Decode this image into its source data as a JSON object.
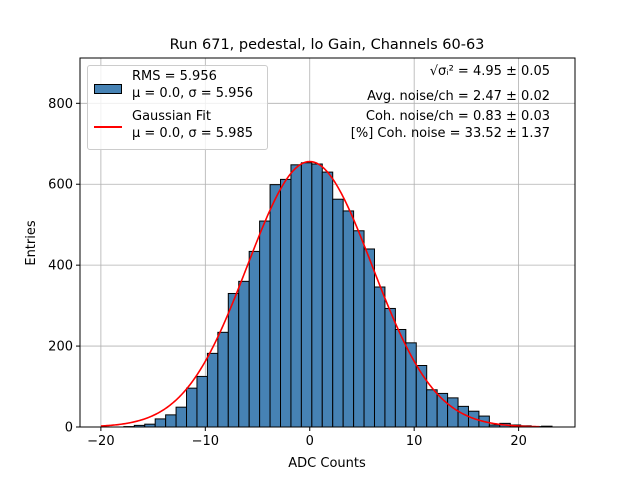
{
  "chart_data": {
    "type": "bar",
    "title": "Run 671, pedestal, lo Gain, Channels 60-63",
    "xlabel": "ADC Counts",
    "ylabel": "Entries",
    "xlim": [
      -22,
      25.4
    ],
    "ylim": [
      0,
      912
    ],
    "xticks": [
      -20,
      -10,
      0,
      10,
      20
    ],
    "yticks": [
      0,
      200,
      400,
      600,
      800
    ],
    "grid": true,
    "bin_width": 1,
    "bin_left_edges": [
      -17.8,
      -16.8,
      -15.8,
      -14.8,
      -13.8,
      -12.8,
      -11.8,
      -10.8,
      -9.8,
      -8.8,
      -7.8,
      -6.8,
      -5.8,
      -4.8,
      -3.8,
      -2.8,
      -1.8,
      -0.8,
      0.2,
      1.2,
      2.2,
      3.2,
      4.2,
      5.2,
      6.2,
      7.2,
      8.2,
      9.2,
      10.2,
      11.2,
      12.2,
      13.2,
      14.2,
      15.2,
      16.2,
      17.2,
      18.2,
      19.2,
      20.2,
      21.2,
      22.2
    ],
    "values": [
      1,
      4,
      7,
      20,
      30,
      49,
      96,
      125,
      182,
      234,
      330,
      360,
      434,
      509,
      599,
      612,
      648,
      653,
      650,
      630,
      563,
      534,
      485,
      440,
      346,
      293,
      241,
      208,
      152,
      92,
      83,
      72,
      51,
      39,
      27,
      5,
      9,
      5,
      3,
      1,
      2
    ],
    "hist_color": "#4682b4",
    "fit": {
      "type": "gaussian",
      "mu": 0.0,
      "sigma": 5.985,
      "peak": 656,
      "x_range": [
        -20,
        22
      ],
      "color": "#ff0000"
    },
    "legend": {
      "placement": "top-left",
      "entries": [
        {
          "line1": "RMS = 5.956",
          "line2": "μ = 0.0, σ = 5.956"
        },
        {
          "line1": "Gaussian Fit",
          "line2": "μ = 0.0, σ = 5.985"
        }
      ]
    },
    "annotations": {
      "sqrt_label": "√σᵢ²",
      "line1": "= 4.95 ± 0.05",
      "line2": "Avg. noise/ch = 2.47 ± 0.02",
      "line3": "Coh. noise/ch = 0.83 ± 0.03",
      "line4": "[%] Coh. noise = 33.52 ± 1.37"
    }
  }
}
